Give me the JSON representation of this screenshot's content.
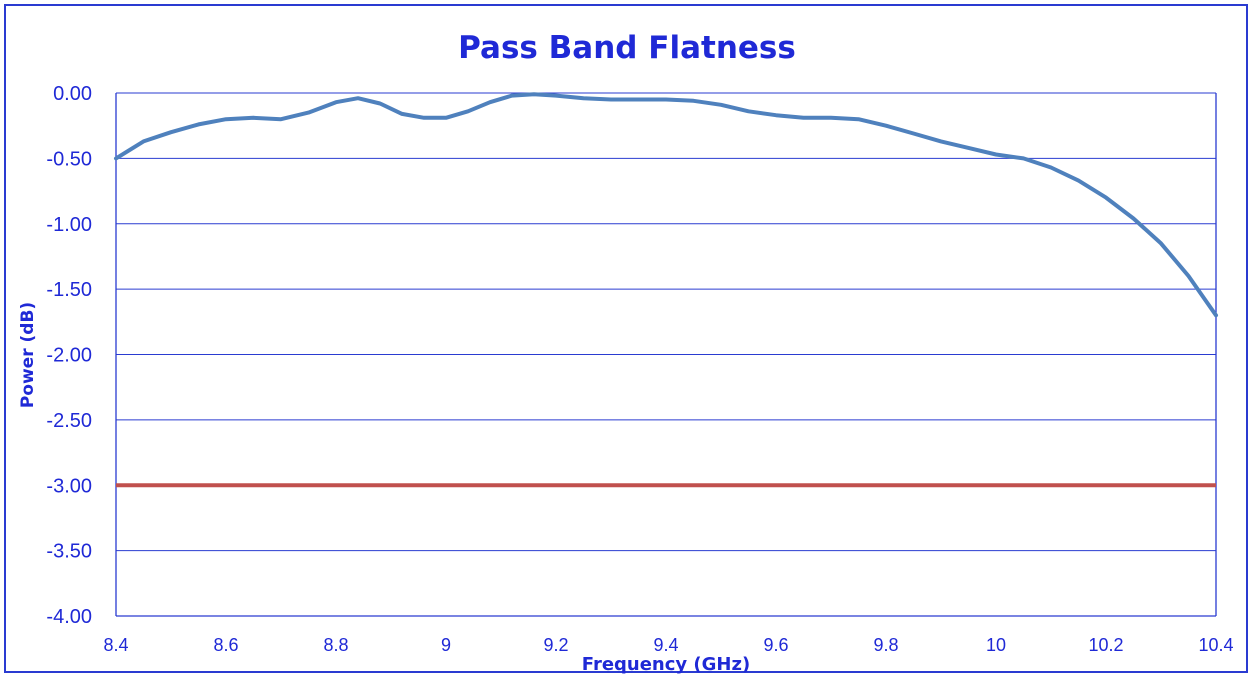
{
  "chart_data": {
    "type": "line",
    "title": "Pass Band Flatness",
    "xlabel": "Frequency (GHz)",
    "ylabel": "Power (dB)",
    "xlim": [
      8.4,
      10.4
    ],
    "ylim": [
      -4.0,
      0.0
    ],
    "x_ticks": [
      "8.4",
      "8.6",
      "8.8",
      "9",
      "9.2",
      "9.4",
      "9.6",
      "9.8",
      "10",
      "10.2",
      "10.4"
    ],
    "y_ticks": [
      "0.00",
      "-0.50",
      "-1.00",
      "-1.50",
      "-2.00",
      "-2.50",
      "-3.00",
      "-3.50",
      "-4.00"
    ],
    "grid": "horizontal",
    "colors": {
      "axis": "#1f29d6",
      "grid": "#2a3bd1",
      "response": "#4f81bd",
      "threshold": "#c0504d"
    },
    "series": [
      {
        "x": [
          8.4,
          8.45,
          8.5,
          8.55,
          8.6,
          8.65,
          8.7,
          8.75,
          8.8,
          8.84,
          8.88,
          8.92,
          8.96,
          9.0,
          9.04,
          9.08,
          9.12,
          9.16,
          9.2,
          9.25,
          9.3,
          9.35,
          9.4,
          9.45,
          9.5,
          9.55,
          9.6,
          9.65,
          9.7,
          9.75,
          9.8,
          9.85,
          9.9,
          9.95,
          10.0,
          10.05,
          10.1,
          10.15,
          10.2,
          10.25,
          10.3,
          10.35,
          10.38,
          10.4
        ],
        "values": [
          -0.5,
          -0.37,
          -0.3,
          -0.24,
          -0.2,
          -0.19,
          -0.2,
          -0.15,
          -0.07,
          -0.04,
          -0.08,
          -0.16,
          -0.19,
          -0.19,
          -0.14,
          -0.07,
          -0.02,
          -0.01,
          -0.02,
          -0.04,
          -0.05,
          -0.05,
          -0.05,
          -0.06,
          -0.09,
          -0.14,
          -0.17,
          -0.19,
          -0.19,
          -0.2,
          -0.25,
          -0.31,
          -0.37,
          -0.42,
          -0.47,
          -0.5,
          -0.57,
          -0.67,
          -0.8,
          -0.96,
          -1.15,
          -1.4,
          -1.58,
          -1.7
        ]
      },
      {
        "x": [
          8.4,
          10.4
        ],
        "values": [
          -3.0,
          -3.0
        ]
      }
    ]
  }
}
